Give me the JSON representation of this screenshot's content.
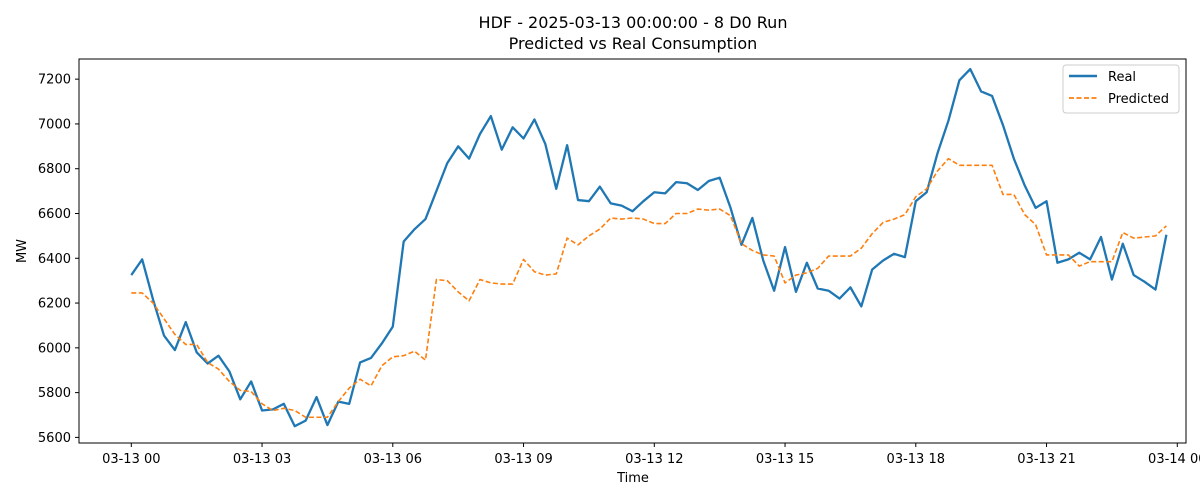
{
  "chart_data": {
    "type": "line",
    "title": "HDF - 2025-03-13 00:00:00 - 8 D0 Run",
    "subtitle": "Predicted vs Real Consumption",
    "xlabel": "Time",
    "ylabel": "MW",
    "xlim": [
      -1.2,
      24.2
    ],
    "ylim": [
      5575,
      7290
    ],
    "x_ticks": [
      0,
      3,
      6,
      9,
      12,
      15,
      18,
      21,
      24
    ],
    "x_tick_labels": [
      "03-13 00",
      "03-13 03",
      "03-13 06",
      "03-13 09",
      "03-13 12",
      "03-13 15",
      "03-13 18",
      "03-13 21",
      "03-14 00"
    ],
    "y_ticks": [
      5600,
      5800,
      6000,
      6200,
      6400,
      6600,
      6800,
      7000,
      7200
    ],
    "y_tick_labels": [
      "5600",
      "5800",
      "6000",
      "6200",
      "6400",
      "6600",
      "6800",
      "7000",
      "7200"
    ],
    "grid": false,
    "legend_position": "top-right",
    "series": [
      {
        "name": "Real",
        "color": "#1f77b4",
        "style": "solid",
        "x": [
          0,
          0.25,
          0.5,
          0.75,
          1,
          1.25,
          1.5,
          1.75,
          2,
          2.25,
          2.5,
          2.75,
          3,
          3.25,
          3.5,
          3.75,
          4,
          4.25,
          4.5,
          4.75,
          5,
          5.25,
          5.5,
          5.75,
          6,
          6.25,
          6.5,
          6.75,
          7,
          7.25,
          7.5,
          7.75,
          8,
          8.25,
          8.5,
          8.75,
          9,
          9.25,
          9.5,
          9.75,
          10,
          10.25,
          10.5,
          10.75,
          11,
          11.25,
          11.5,
          11.75,
          12,
          12.25,
          12.5,
          12.75,
          13,
          13.25,
          13.5,
          13.75,
          14,
          14.25,
          14.5,
          14.75,
          15,
          15.25,
          15.5,
          15.75,
          16,
          16.25,
          16.5,
          16.75,
          17,
          17.25,
          17.5,
          17.75,
          18,
          18.25,
          18.5,
          18.75,
          19,
          19.25,
          19.5,
          19.75,
          20,
          20.25,
          20.5,
          20.75,
          21,
          21.25,
          21.5,
          21.75,
          22,
          22.25,
          22.5,
          22.75,
          23,
          23.25,
          23.5,
          23.75
        ],
        "values": [
          6325,
          6395,
          6215,
          6055,
          5990,
          6115,
          5980,
          5930,
          5965,
          5895,
          5770,
          5850,
          5720,
          5725,
          5750,
          5650,
          5675,
          5780,
          5655,
          5760,
          5750,
          5935,
          5955,
          6020,
          6095,
          6475,
          6530,
          6575,
          6700,
          6825,
          6900,
          6845,
          6955,
          7035,
          6885,
          6985,
          6935,
          7020,
          6910,
          6710,
          6905,
          6660,
          6655,
          6720,
          6645,
          6635,
          6610,
          6655,
          6695,
          6690,
          6740,
          6735,
          6705,
          6745,
          6760,
          6625,
          6460,
          6580,
          6390,
          6255,
          6450,
          6250,
          6380,
          6265,
          6255,
          6220,
          6270,
          6185,
          6350,
          6390,
          6420,
          6405,
          6655,
          6695,
          6870,
          7015,
          7195,
          7245,
          7145,
          7125,
          6995,
          6845,
          6725,
          6625,
          6655,
          6380,
          6395,
          6425,
          6395,
          6495,
          6305,
          6465,
          6325,
          6295,
          6260,
          6505
        ]
      },
      {
        "name": "Predicted",
        "color": "#ff7f0e",
        "style": "dashed",
        "x": [
          0,
          0.25,
          0.5,
          0.75,
          1,
          1.25,
          1.5,
          1.75,
          2,
          2.25,
          2.5,
          2.75,
          3,
          3.25,
          3.5,
          3.75,
          4,
          4.25,
          4.5,
          4.75,
          5,
          5.25,
          5.5,
          5.75,
          6,
          6.25,
          6.5,
          6.75,
          7,
          7.25,
          7.5,
          7.75,
          8,
          8.25,
          8.5,
          8.75,
          9,
          9.25,
          9.5,
          9.75,
          10,
          10.25,
          10.5,
          10.75,
          11,
          11.25,
          11.5,
          11.75,
          12,
          12.25,
          12.5,
          12.75,
          13,
          13.25,
          13.5,
          13.75,
          14,
          14.25,
          14.5,
          14.75,
          15,
          15.25,
          15.5,
          15.75,
          16,
          16.25,
          16.5,
          16.75,
          17,
          17.25,
          17.5,
          17.75,
          18,
          18.25,
          18.5,
          18.75,
          19,
          19.25,
          19.5,
          19.75,
          20,
          20.25,
          20.5,
          20.75,
          21,
          21.25,
          21.5,
          21.75,
          22,
          22.25,
          22.5,
          22.75,
          23,
          23.25,
          23.5,
          23.75
        ],
        "values": [
          6245,
          6245,
          6200,
          6130,
          6060,
          6015,
          6015,
          5935,
          5905,
          5850,
          5810,
          5805,
          5750,
          5720,
          5730,
          5720,
          5690,
          5690,
          5690,
          5760,
          5820,
          5860,
          5830,
          5920,
          5960,
          5965,
          5985,
          5945,
          6305,
          6300,
          6250,
          6210,
          6305,
          6290,
          6285,
          6285,
          6395,
          6340,
          6325,
          6330,
          6490,
          6460,
          6500,
          6530,
          6580,
          6575,
          6580,
          6575,
          6555,
          6555,
          6600,
          6600,
          6620,
          6615,
          6620,
          6590,
          6465,
          6435,
          6415,
          6410,
          6290,
          6325,
          6335,
          6355,
          6410,
          6410,
          6410,
          6445,
          6510,
          6560,
          6575,
          6595,
          6675,
          6710,
          6790,
          6845,
          6815,
          6815,
          6815,
          6815,
          6685,
          6685,
          6595,
          6550,
          6415,
          6415,
          6415,
          6365,
          6385,
          6385,
          6385,
          6515,
          6490,
          6495,
          6500,
          6545
        ]
      }
    ]
  }
}
